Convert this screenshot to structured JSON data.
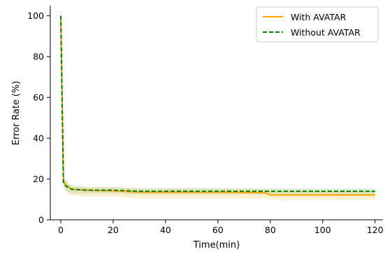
{
  "chart_data": {
    "type": "line",
    "title": "",
    "xlabel": "Time(min)",
    "ylabel": "Error Rate (%)",
    "xlim": [
      -4,
      123
    ],
    "ylim": [
      0,
      105
    ],
    "xticks": [
      0,
      20,
      40,
      60,
      80,
      100,
      120
    ],
    "yticks": [
      0,
      20,
      40,
      60,
      80,
      100
    ],
    "grid": false,
    "legend_position": "top-right",
    "series": [
      {
        "name": "With AVATAR",
        "color": "#ffa500",
        "style": "solid",
        "x": [
          0,
          1,
          2,
          4,
          10,
          20,
          30,
          40,
          60,
          78,
          80,
          100,
          120
        ],
        "y": [
          100,
          19,
          17,
          15,
          14.5,
          14.2,
          13.5,
          13.5,
          13.5,
          13.3,
          12.2,
          12.2,
          12.2
        ],
        "band_lower": [
          100,
          17,
          14,
          12,
          11.5,
          11.5,
          10.5,
          10.5,
          10.5,
          10.5,
          10,
          10,
          10
        ],
        "band_upper": [
          100,
          21,
          19,
          16.5,
          16,
          16,
          15.5,
          15.5,
          15.5,
          15,
          14.5,
          14.5,
          14.5
        ]
      },
      {
        "name": "Without AVATAR",
        "color": "#008000",
        "style": "dashed",
        "x": [
          0,
          1,
          2,
          4,
          10,
          20,
          30,
          40,
          60,
          80,
          100,
          120
        ],
        "y": [
          100,
          18.5,
          16.5,
          15,
          14.5,
          14.5,
          14,
          14,
          14,
          14,
          14,
          14
        ],
        "band_lower": [
          100,
          16,
          14,
          13,
          13,
          13,
          12.5,
          12.5,
          12.5,
          12.5,
          12.5,
          12.5
        ],
        "band_upper": [
          100,
          21,
          19,
          17,
          16,
          16,
          15.5,
          15.5,
          15.5,
          15.5,
          15.5,
          15.5
        ]
      }
    ]
  }
}
